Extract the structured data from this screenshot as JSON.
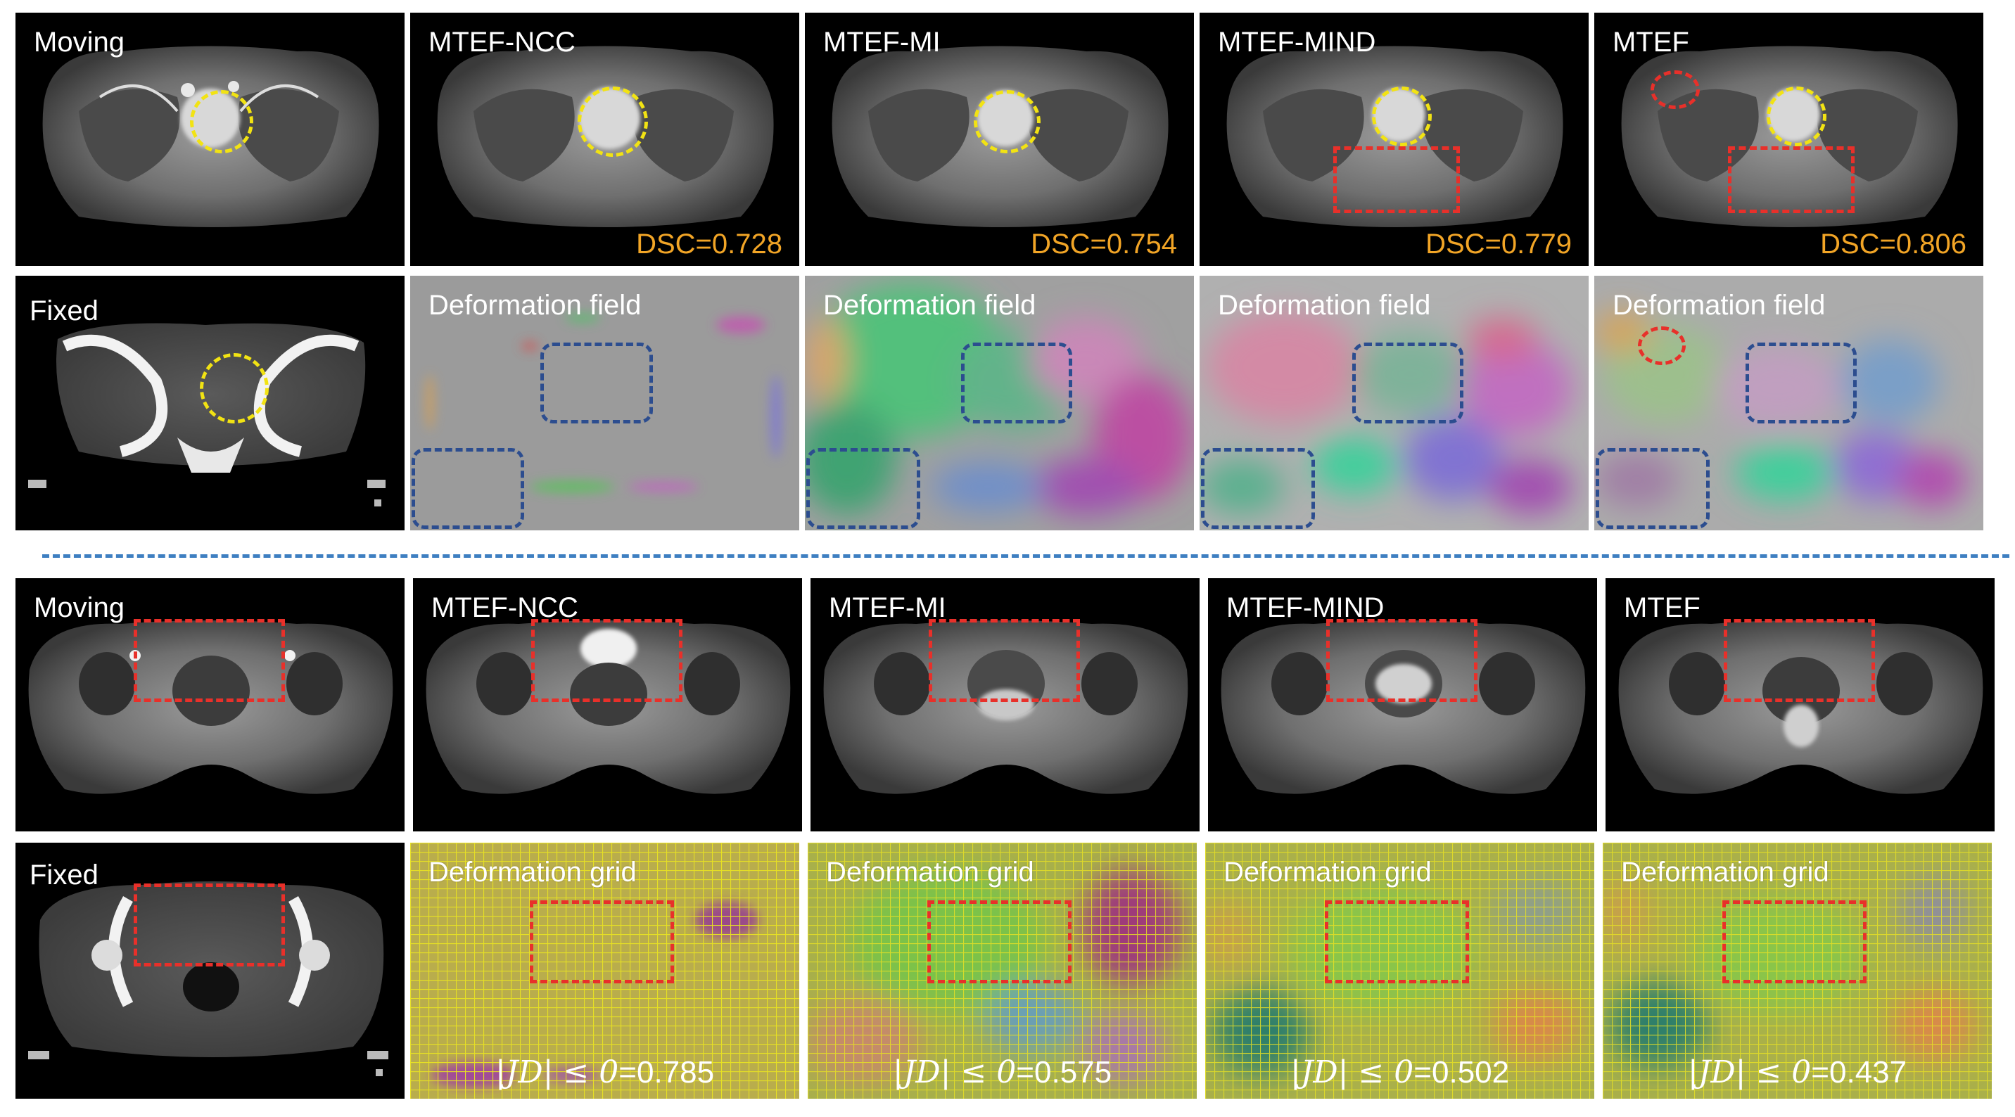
{
  "figure": {
    "section1": {
      "moving_label": "Moving",
      "fixed_label": "Fixed",
      "methods": [
        {
          "name": "MTEF-NCC",
          "dsc": "DSC=0.728",
          "field_label": "Deformation field"
        },
        {
          "name": "MTEF-MI",
          "dsc": "DSC=0.754",
          "field_label": "Deformation field"
        },
        {
          "name": "MTEF-MIND",
          "dsc": "DSC=0.779",
          "field_label": "Deformation field"
        },
        {
          "name": "MTEF",
          "dsc": "DSC=0.806",
          "field_label": "Deformation field"
        }
      ]
    },
    "section2": {
      "moving_label": "Moving",
      "fixed_label": "Fixed",
      "methods": [
        {
          "name": "MTEF-NCC",
          "grid_label": "Deformation grid",
          "jacobian_prefix": "|JD| ≤ 0",
          "jacobian_value": "=0.785"
        },
        {
          "name": "MTEF-MI",
          "grid_label": "Deformation grid",
          "jacobian_prefix": "|JD| ≤ 0",
          "jacobian_value": "=0.575"
        },
        {
          "name": "MTEF-MIND",
          "grid_label": "Deformation grid",
          "jacobian_prefix": "|JD| ≤ 0",
          "jacobian_value": "=0.502"
        },
        {
          "name": "MTEF",
          "grid_label": "Deformation grid",
          "jacobian_prefix": "|JD| ≤ 0",
          "jacobian_value": "=0.437"
        }
      ]
    },
    "colors": {
      "dsc_text": "#f2a526",
      "roi_red": "#e8302a",
      "roi_blue": "#2c4d8f",
      "roi_yellow": "#f2e313",
      "divider": "#3e7fc1",
      "grid_line": "#e6e024"
    }
  }
}
